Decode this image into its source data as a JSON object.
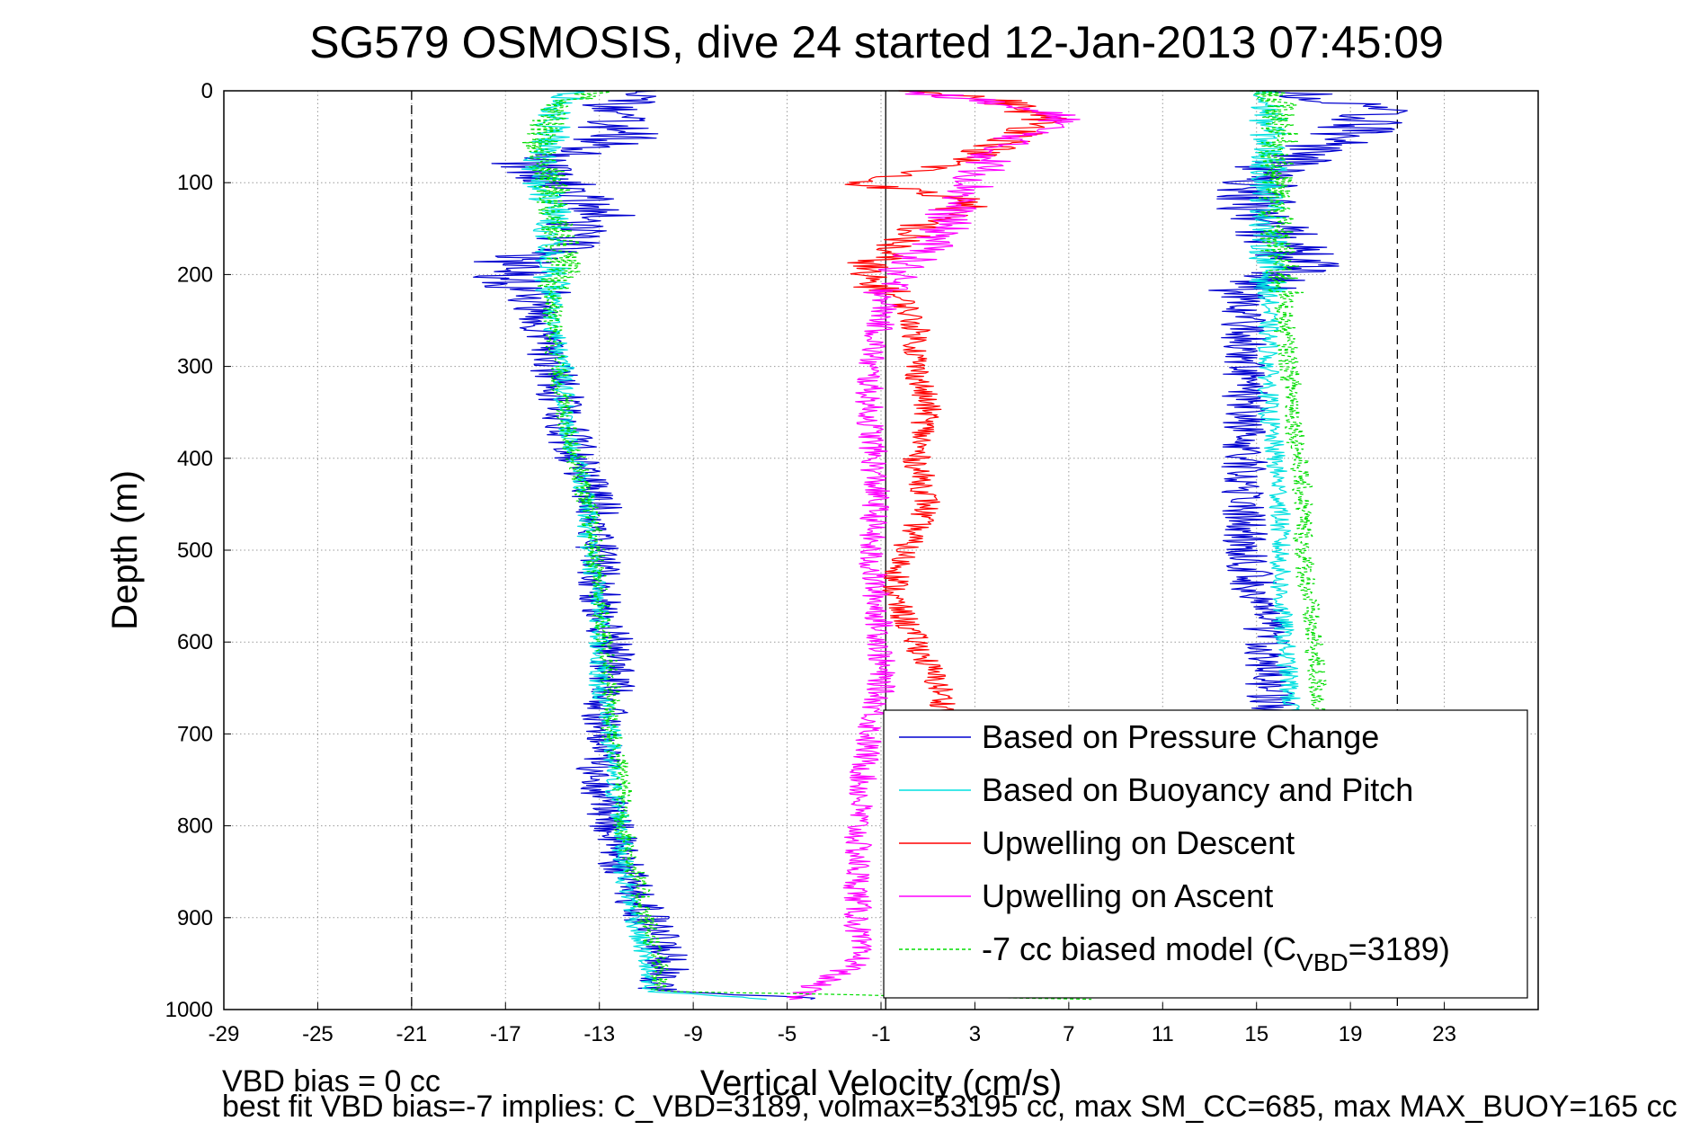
{
  "chart_data": {
    "type": "line",
    "title": "SG579 OSMOSIS, dive 24 started 12-Jan-2013 07:45:09",
    "xlabel": "Vertical Velocity (cm/s)",
    "ylabel": "Depth (m)",
    "xlim": [
      -29,
      27
    ],
    "ylim": [
      0,
      1000
    ],
    "y_reversed": true,
    "grid": true,
    "x_ticks": [
      "-29",
      "-25",
      "-21",
      "-17",
      "-13",
      "-9",
      "-5",
      "-1",
      "3",
      "7",
      "11",
      "15",
      "19",
      "23"
    ],
    "y_ticks": [
      "0",
      "100",
      "200",
      "300",
      "400",
      "500",
      "600",
      "700",
      "800",
      "900",
      "1000"
    ],
    "reference_lines": {
      "solid_x": [
        -0.8
      ],
      "dashed_x": [
        -21,
        21
      ]
    },
    "legend_position": "bottom-right",
    "legend": [
      {
        "label": "Based on Pressure Change",
        "color": "#0000d0",
        "style": "solid"
      },
      {
        "label": "Based on Buoyancy and Pitch",
        "color": "#00e0e0",
        "style": "solid"
      },
      {
        "label": "Upwelling on Descent",
        "color": "#ff0000",
        "style": "solid"
      },
      {
        "label": "Upwelling on Ascent",
        "color": "#ff00ff",
        "style": "solid"
      },
      {
        "label": "-7 cc biased model (C",
        "sub": "VBD",
        "suffix": "=3189)",
        "color": "#00dd00",
        "style": "dashed"
      }
    ],
    "series": [
      {
        "name": "Based on Pressure Change",
        "color": "#0000d0",
        "noise": 1.0,
        "dashed": false,
        "profiles": [
          {
            "depth": [
              0,
              20,
              50,
              80,
              100,
              130,
              160,
              190,
              220,
              260,
              300,
              350,
              400,
              450,
              500,
              550,
              600,
              650,
              700,
              750,
              800,
              850,
              900,
              950,
              980,
              990
            ],
            "velocity": [
              -10,
              -13,
              -12,
              -16,
              -15,
              -13,
              -14,
              -17,
              -16,
              -15.5,
              -15,
              -14.5,
              -14,
              -13,
              -13,
              -13,
              -12.5,
              -12.5,
              -13,
              -13,
              -12.5,
              -12,
              -11,
              -10,
              -10.5,
              -2
            ]
          },
          {
            "depth": [
              0,
              20,
              50,
              80,
              100,
              130,
              160,
              190,
              220,
              260,
              300,
              350,
              400,
              450,
              500,
              550,
              600,
              650,
              700
            ],
            "velocity": [
              16,
              20,
              19,
              16,
              15,
              15,
              16,
              17,
              14.5,
              14.5,
              14.5,
              14.5,
              14.5,
              14.5,
              14.5,
              15,
              15.5,
              15.5,
              16
            ]
          }
        ]
      },
      {
        "name": "Based on Buoyancy and Pitch",
        "color": "#00e0e0",
        "noise": 0.45,
        "dashed": false,
        "profiles": [
          {
            "depth": [
              0,
              20,
              50,
              80,
              100,
              130,
              160,
              190,
              220,
              260,
              300,
              350,
              400,
              450,
              500,
              550,
              600,
              650,
              700,
              750,
              800,
              850,
              900,
              950,
              980,
              990
            ],
            "velocity": [
              -14,
              -15,
              -15,
              -15.5,
              -15.5,
              -15,
              -15,
              -15,
              -15,
              -15,
              -14.5,
              -14.5,
              -14,
              -13.5,
              -13.5,
              -13,
              -13,
              -13,
              -12.5,
              -12.5,
              -12,
              -12,
              -11.5,
              -11,
              -11,
              -5
            ]
          },
          {
            "depth": [
              0,
              20,
              50,
              80,
              100,
              130,
              160,
              190,
              220,
              260,
              300,
              350,
              400,
              450,
              500,
              550,
              600,
              650,
              700
            ],
            "velocity": [
              15,
              15.5,
              15.5,
              15.5,
              15.5,
              15.5,
              15.5,
              15.5,
              15.5,
              15.5,
              15.5,
              15.5,
              15.8,
              16,
              16,
              16,
              16.2,
              16.4,
              16.5
            ]
          }
        ]
      },
      {
        "name": "Upwelling on Descent",
        "color": "#ff0000",
        "noise": 0.6,
        "dashed": false,
        "profiles": [
          {
            "depth": [
              0,
              10,
              30,
              50,
              80,
              100,
              120,
              150,
              180,
              200,
              230,
              260,
              300,
              350,
              400,
              450,
              500,
              550,
              600,
              650,
              680
            ],
            "velocity": [
              0,
              4,
              6,
              5,
              2,
              -2,
              3,
              0.5,
              -1,
              -2,
              0,
              0.5,
              0.5,
              1,
              0.5,
              1,
              0,
              -0.5,
              0.5,
              1.5,
              1.8
            ]
          }
        ]
      },
      {
        "name": "Upwelling on Ascent",
        "color": "#ff00ff",
        "noise": 0.6,
        "dashed": false,
        "profiles": [
          {
            "depth": [
              0,
              10,
              30,
              60,
              100,
              130,
              160,
              200,
              250,
              300,
              350,
              400,
              450,
              500,
              550,
              600,
              650,
              700,
              750,
              800,
              850,
              900,
              950,
              990
            ],
            "velocity": [
              0,
              3,
              7,
              4,
              3,
              2,
              1.5,
              -0.5,
              -1,
              -1.5,
              -1.5,
              -1.3,
              -1.2,
              -1.5,
              -1.2,
              -1,
              -1,
              -1.5,
              -1.8,
              -2,
              -2,
              -2,
              -2,
              -5
            ]
          }
        ]
      },
      {
        "name": "-7 cc biased model (CVBD=3189)",
        "color": "#00dd00",
        "noise": 0.45,
        "dashed": true,
        "profiles": [
          {
            "depth": [
              0,
              20,
              50,
              80,
              100,
              130,
              160,
              190,
              220,
              260,
              300,
              350,
              400,
              450,
              500,
              550,
              600,
              650,
              700,
              750,
              800,
              850,
              900,
              950,
              980,
              990
            ],
            "velocity": [
              -13,
              -15,
              -15.5,
              -15.5,
              -15,
              -15,
              -14.5,
              -14.5,
              -15,
              -15,
              -14.8,
              -14.5,
              -14,
              -13.5,
              -13.2,
              -13,
              -12.8,
              -12.5,
              -12.5,
              -12,
              -12,
              -11.5,
              -11,
              -10.5,
              -10.5,
              10
            ]
          },
          {
            "depth": [
              0,
              20,
              50,
              80,
              100,
              130,
              160,
              190,
              220,
              260,
              300,
              350,
              400,
              450,
              500,
              550,
              600,
              650,
              700
            ],
            "velocity": [
              15.5,
              16,
              16,
              15.8,
              15.8,
              15.8,
              15.8,
              16,
              16.2,
              16.2,
              16.4,
              16.6,
              16.8,
              17,
              17,
              17.2,
              17.4,
              17.6,
              17.8
            ]
          }
        ]
      }
    ]
  },
  "footer": {
    "line1": "VBD bias = 0 cc",
    "line2": "best fit VBD bias=-7 implies: C_VBD=3189, volmax=53195 cc, max SM_CC=685, max MAX_BUOY=165 cc"
  }
}
